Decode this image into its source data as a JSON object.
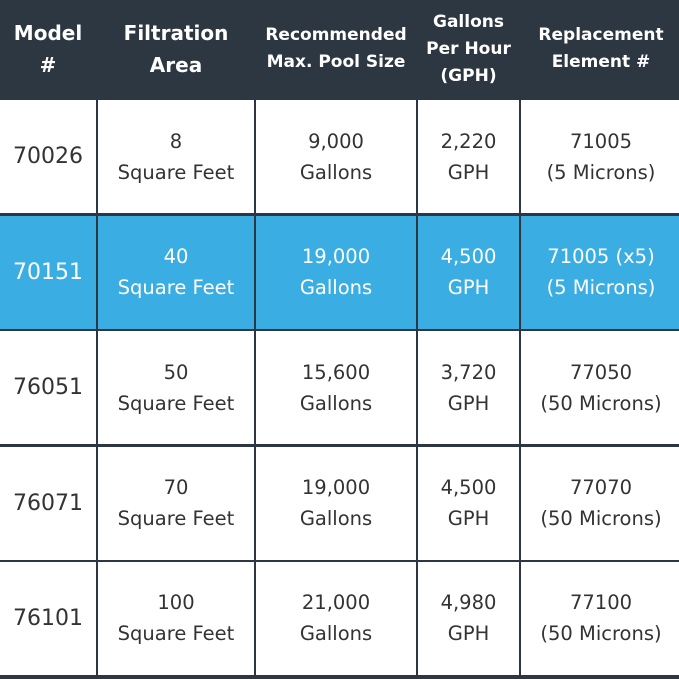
{
  "table": {
    "header": [
      "Model\n#",
      "Filtration\nArea",
      "Recommended\nMax. Pool Size",
      "Gallons\nPer Hour\n(GPH)",
      "Replacement\nElement #"
    ],
    "rows": [
      [
        "70026",
        "8\nSquare Feet",
        "9,000\nGallons",
        "2,220\nGPH",
        "71005\n(5 Microns)"
      ],
      [
        "70151",
        "40\nSquare Feet",
        "19,000\nGallons",
        "4,500\nGPH",
        "71005 (x5)\n(5 Microns)"
      ],
      [
        "76051",
        "50\nSquare Feet",
        "15,600\nGallons",
        "3,720\nGPH",
        "77050\n(50 Microns)"
      ],
      [
        "76071",
        "70\nSquare Feet",
        "19,000\nGallons",
        "4,500\nGPH",
        "77070\n(50 Microns)"
      ],
      [
        "76101",
        "100\nSquare Feet",
        "21,000\nGallons",
        "4,980\nGPH",
        "77100\n(50 Microns)"
      ]
    ]
  }
}
